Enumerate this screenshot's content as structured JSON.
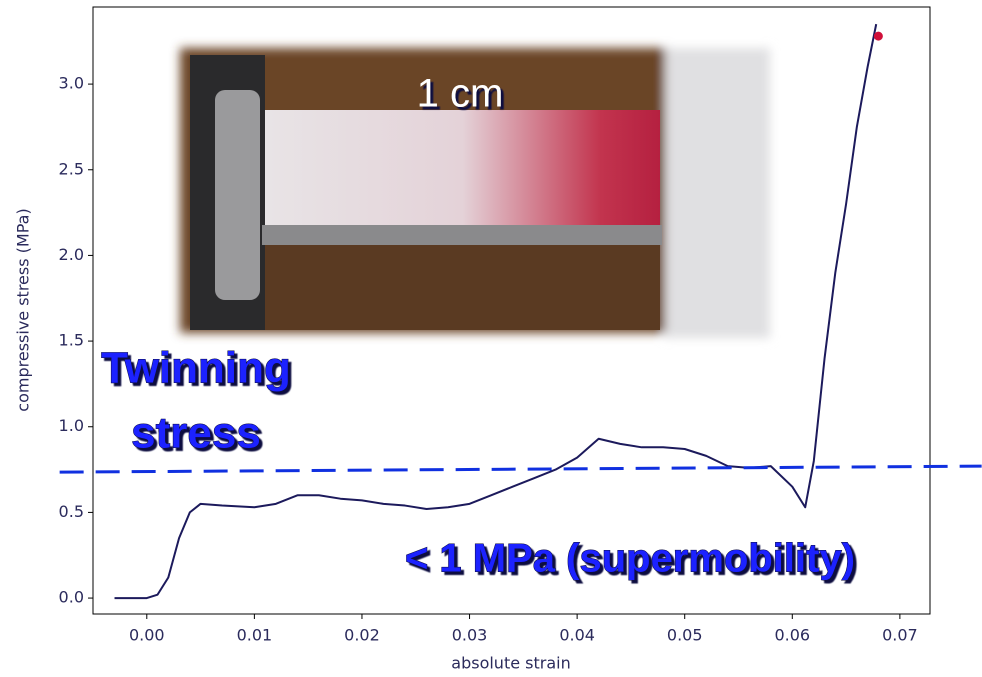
{
  "chart_data": {
    "type": "line",
    "x_label": "absolute strain",
    "y_label": "compressive stress (MPa)",
    "xlim": [
      -0.005,
      0.0728
    ],
    "ylim": [
      -0.093,
      3.45
    ],
    "xticks": [
      {
        "value": 0,
        "label": "0.00"
      },
      {
        "value": 0.01,
        "label": "0.01"
      },
      {
        "value": 0.02,
        "label": "0.02"
      },
      {
        "value": 0.03,
        "label": "0.03"
      },
      {
        "value": 0.04,
        "label": "0.04"
      },
      {
        "value": 0.05,
        "label": "0.05"
      },
      {
        "value": 0.06,
        "label": "0.06"
      },
      {
        "value": 0.07,
        "label": "0.07"
      }
    ],
    "yticks": [
      {
        "value": 0,
        "label": "0.0"
      },
      0.5,
      {
        "value": 1,
        "label": "1.0"
      },
      1.5,
      {
        "value": 2,
        "label": "2.0"
      },
      2.5,
      {
        "value": 3,
        "label": "3.0"
      }
    ],
    "grid": false,
    "x": [
      -0.003,
      0.0,
      0.001,
      0.002,
      0.003,
      0.004,
      0.005,
      0.007,
      0.01,
      0.012,
      0.014,
      0.016,
      0.018,
      0.02,
      0.022,
      0.024,
      0.026,
      0.028,
      0.03,
      0.032,
      0.034,
      0.036,
      0.038,
      0.04,
      0.042,
      0.044,
      0.046,
      0.048,
      0.05,
      0.052,
      0.054,
      0.056,
      0.058,
      0.06,
      0.0612,
      0.062,
      0.063,
      0.064,
      0.065,
      0.066,
      0.067,
      0.0678
    ],
    "series": [
      {
        "color": "#1c1a5c",
        "values": [
          0,
          0,
          0.02,
          0.12,
          0.35,
          0.5,
          0.55,
          0.54,
          0.53,
          0.55,
          0.6,
          0.6,
          0.58,
          0.57,
          0.55,
          0.54,
          0.52,
          0.53,
          0.55,
          0.6,
          0.65,
          0.7,
          0.75,
          0.82,
          0.93,
          0.9,
          0.88,
          0.88,
          0.87,
          0.83,
          0.77,
          0.76,
          0.77,
          0.65,
          0.53,
          0.8,
          1.4,
          1.9,
          2.3,
          2.75,
          3.1,
          3.35
        ]
      }
    ],
    "marker": {
      "x": 0.068,
      "y": 3.28,
      "color": "#d0103a"
    },
    "reference_line": {
      "x": [
        -0.0081,
        0.0776
      ],
      "y": [
        0.735,
        0.77
      ],
      "color": "#1030e0"
    },
    "annotations": {
      "scale": "1 cm",
      "twinning": [
        "Twinning",
        "stress"
      ],
      "supermobility": "< 1 MPa (supermobility)"
    }
  }
}
